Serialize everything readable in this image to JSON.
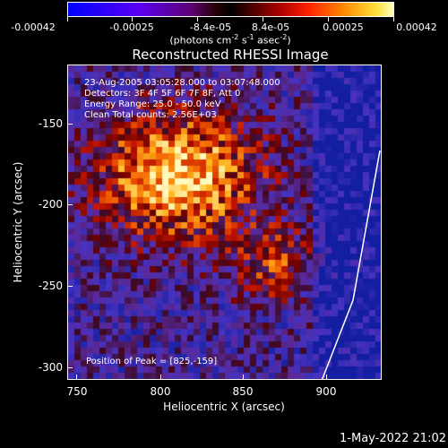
{
  "colorbar": {
    "ticks": [
      "-0.00042",
      "-0.00025",
      "-8.4e-05",
      "8.4e-05",
      "0.00025",
      "0.00042"
    ],
    "units_main": "(photons cm",
    "units_exp1": "-2",
    "units_s": " s",
    "units_exp2": "-1",
    "units_asec": " asec",
    "units_exp3": "-2",
    "units_close": ")"
  },
  "title": "Reconstructed RHESSI Image",
  "info": {
    "time": "23-Aug-2005 03:05:28.000 to 03:07:48.000",
    "detectors": "Detectors: 3F 4F 5F 6F 7F 8F, Att 0",
    "energy": "Energy Range: 25.0 - 50.0 keV",
    "clean": "Clean     Total counts: 2.56E+03",
    "peak": "Position of Peak = [825,-159]"
  },
  "axes": {
    "xlabel": "Heliocentric X (arcsec)",
    "ylabel": "Heliocentric Y (arcsec)",
    "xticks": [
      "750",
      "800",
      "850",
      "900"
    ],
    "yticks": [
      "-150",
      "-200",
      "-250",
      "-300"
    ]
  },
  "footer": {
    "date": "1-May-2022 21:02"
  },
  "colors": {
    "background": "#000000",
    "line": "#ffffff"
  }
}
